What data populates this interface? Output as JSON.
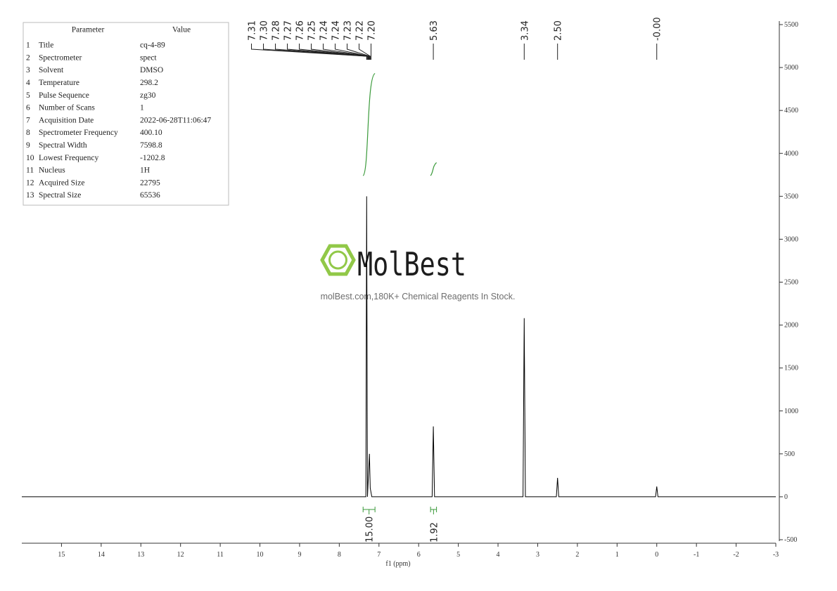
{
  "parameters": {
    "headers": [
      "Parameter",
      "Value"
    ],
    "rows": [
      [
        "1",
        "Title",
        "cq-4-89"
      ],
      [
        "2",
        "Spectrometer",
        "spect"
      ],
      [
        "3",
        "Solvent",
        "DMSO"
      ],
      [
        "4",
        "Temperature",
        "298.2"
      ],
      [
        "5",
        "Pulse Sequence",
        "zg30"
      ],
      [
        "6",
        "Number of Scans",
        "1"
      ],
      [
        "7",
        "Acquisition Date",
        "2022-06-28T11:06:47"
      ],
      [
        "8",
        "Spectrometer Frequency",
        "400.10"
      ],
      [
        "9",
        "Spectral Width",
        "7598.8"
      ],
      [
        "10",
        "Lowest Frequency",
        "-1202.8"
      ],
      [
        "11",
        "Nucleus",
        "1H"
      ],
      [
        "12",
        "Acquired Size",
        "22795"
      ],
      [
        "13",
        "Spectral Size",
        "65536"
      ]
    ]
  },
  "watermark": {
    "logo": "MolBest",
    "text": "molBest.com,180K+ Chemical Reagents In Stock."
  },
  "chart_data": {
    "type": "line",
    "x_label": "f1 (ppm)",
    "xlim": [
      16,
      -3
    ],
    "xticks": [
      15,
      14,
      13,
      12,
      11,
      10,
      9,
      8,
      7,
      6,
      5,
      4,
      3,
      2,
      1,
      0,
      -1,
      -2,
      -3
    ],
    "ylim": [
      -500,
      5500
    ],
    "yticks": [
      -500,
      0,
      500,
      1000,
      1500,
      2000,
      2500,
      3000,
      3500,
      4000,
      4500,
      5000,
      5500
    ],
    "series": [
      {
        "color": "#000000",
        "x": [
          16,
          7.45,
          7.33,
          7.31,
          7.29,
          7.26,
          7.24,
          7.22,
          7.18,
          5.66,
          5.63,
          5.6,
          3.37,
          3.34,
          3.31,
          2.53,
          2.5,
          2.47,
          0.03,
          0,
          -0.03,
          -3
        ],
        "values": [
          0,
          0,
          0,
          3500,
          0,
          300,
          500,
          100,
          0,
          0,
          820,
          0,
          0,
          2080,
          0,
          0,
          220,
          0,
          0,
          120,
          0,
          0
        ]
      }
    ],
    "peak_labels": [
      {
        "value": 7.31,
        "label": "7.31"
      },
      {
        "value": 7.3,
        "label": "7.30"
      },
      {
        "value": 7.28,
        "label": "7.28"
      },
      {
        "value": 7.27,
        "label": "7.27"
      },
      {
        "value": 7.26,
        "label": "7.26"
      },
      {
        "value": 7.25,
        "label": "7.25"
      },
      {
        "value": 7.24,
        "label": "7.24"
      },
      {
        "value": 7.24,
        "label": "7.24"
      },
      {
        "value": 7.23,
        "label": "7.23"
      },
      {
        "value": 7.22,
        "label": "7.22"
      },
      {
        "value": 7.2,
        "label": "7.20"
      },
      {
        "value": 5.63,
        "label": "5.63"
      },
      {
        "value": 3.34,
        "label": "3.34"
      },
      {
        "value": 2.5,
        "label": "2.50"
      },
      {
        "value": 0,
        "label": "-0.00"
      }
    ],
    "integrals": [
      {
        "from": 7.4,
        "to": 7.1,
        "value": 15,
        "label": "15.00"
      },
      {
        "from": 5.7,
        "to": 5.55,
        "value": 1.92,
        "label": "1.92"
      }
    ],
    "integral_color": "#3a9a3a"
  }
}
